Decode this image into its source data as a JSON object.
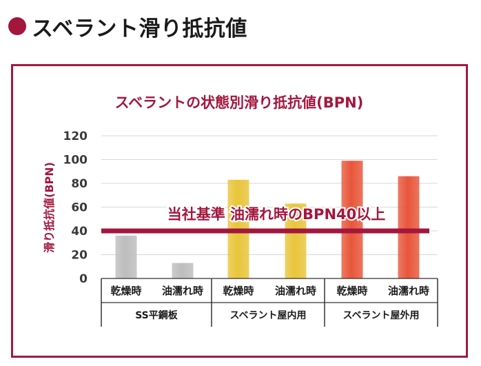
{
  "page": {
    "heading": "スベラント滑り抵抗値"
  },
  "colors": {
    "accent": "#a3173d",
    "series_gray": "#bdbdbd",
    "series_yellow": "#e8c53a",
    "series_orange": "#e8563a",
    "grid": "#d7d7d7"
  },
  "chart_data": {
    "type": "bar",
    "title": "スベラントの状態別滑り抵抗値(BPN)",
    "xlabel": "",
    "ylabel": "滑り抵抗値(BPN)",
    "ylim": [
      0,
      120
    ],
    "yticks": [
      0,
      20,
      40,
      60,
      80,
      100,
      120
    ],
    "grid": true,
    "categories": [
      "乾燥時",
      "油濡れ時",
      "乾燥時",
      "油濡れ時",
      "乾燥時",
      "油濡れ時"
    ],
    "groups": [
      {
        "label": "SS平鋼板",
        "categories": [
          "乾燥時",
          "油濡れ時"
        ],
        "color": "#bdbdbd"
      },
      {
        "label": "スベラント屋内用",
        "categories": [
          "乾燥時",
          "油濡れ時"
        ],
        "color": "#e8c53a"
      },
      {
        "label": "スベラント屋外用",
        "categories": [
          "乾燥時",
          "油濡れ時"
        ],
        "color": "#e8563a"
      }
    ],
    "values": [
      36,
      13,
      83,
      63,
      99,
      86
    ],
    "reference_line": {
      "value": 40,
      "label": "当社基準 油濡れ時のBPN40以上"
    }
  }
}
